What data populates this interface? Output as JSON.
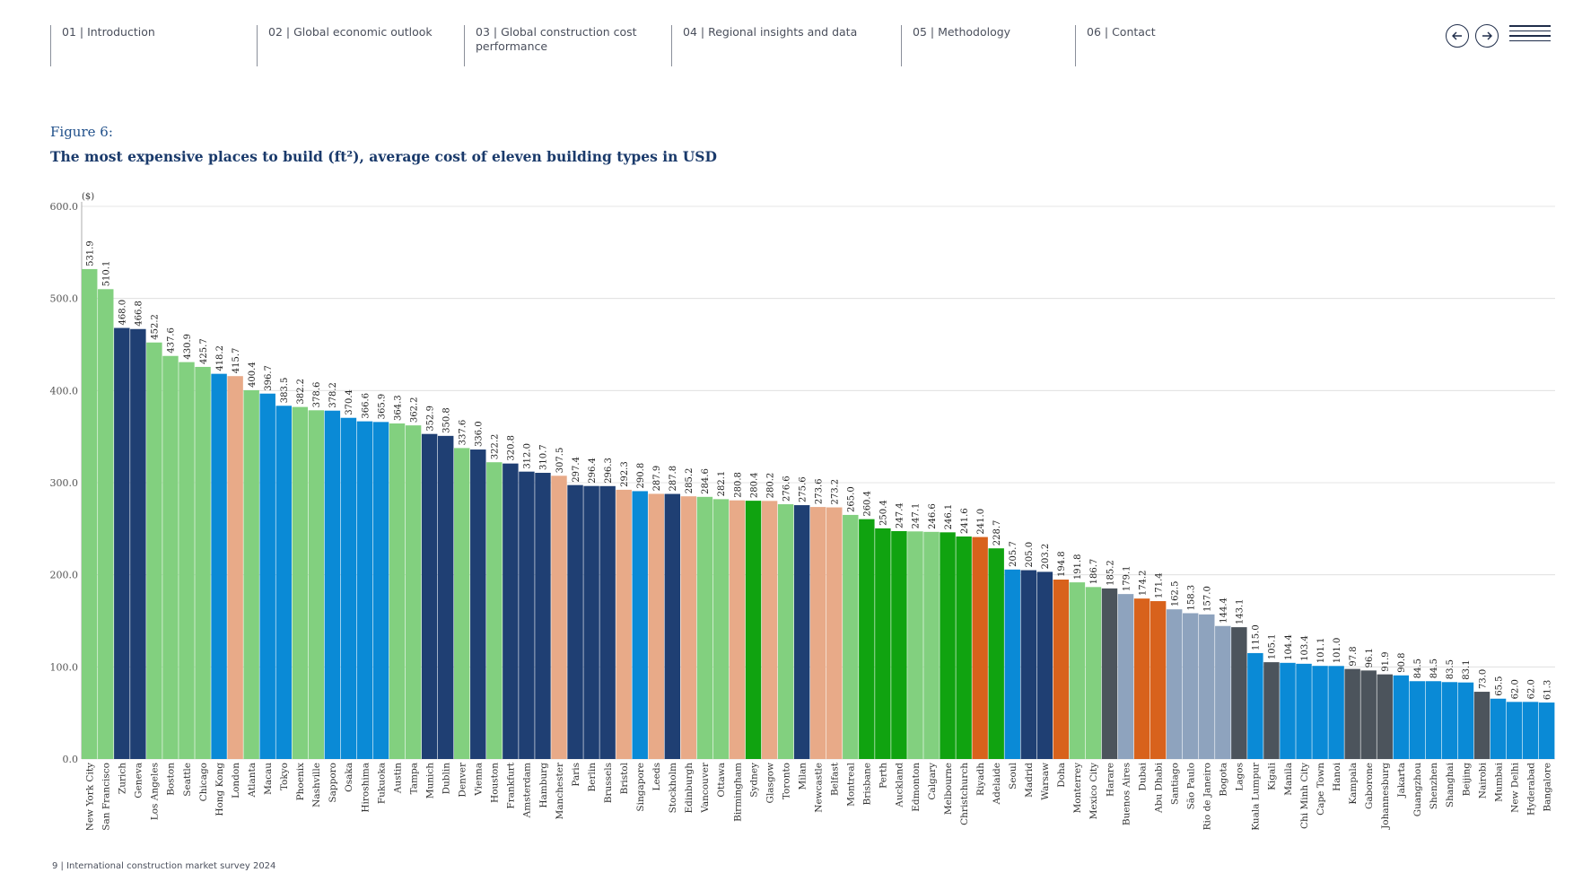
{
  "nav": {
    "items": [
      {
        "label": "01 | Introduction"
      },
      {
        "label": "02 | Global economic outlook"
      },
      {
        "label": "03 | Global construction cost\n      performance"
      },
      {
        "label": "04 | Regional insights and data"
      },
      {
        "label": "05 | Methodology"
      },
      {
        "label": "06 | Contact"
      }
    ],
    "prev_icon": "arrow-left-icon",
    "next_icon": "arrow-right-icon",
    "menu_icon": "hamburger-menu-icon"
  },
  "figure": {
    "label": "Figure 6:",
    "title": "The most expensive places to build (ft²), average cost of eleven building types in USD"
  },
  "footer": {
    "text": "9  |  International construction market survey 2024"
  },
  "colors": {
    "light_green": "#82d07f",
    "dark_navy": "#1f3f73",
    "blue": "#0a8ad6",
    "peach": "#e8aa88",
    "green": "#10a310",
    "orange": "#d8621c",
    "gray_blue": "#8ea3be",
    "dark_gray": "#4c545c"
  },
  "chart_data": {
    "type": "bar",
    "title": "The most expensive places to build (ft²), average cost of eleven building types in USD",
    "ylabel": "($)",
    "xlabel": "",
    "ylim": [
      0,
      600
    ],
    "yticks": [
      "0.0",
      "100.0",
      "200.0",
      "300.0",
      "400.0",
      "500.0",
      "600.0"
    ],
    "grid": true,
    "categories": [
      "New York City",
      "San Francisco",
      "Zurich",
      "Geneva",
      "Los Angeles",
      "Boston",
      "Seattle",
      "Chicago",
      "Hong Kong",
      "London",
      "Atlanta",
      "Macau",
      "Tokyo",
      "Phoenix",
      "Nashville",
      "Sapporo",
      "Osaka",
      "Hiroshima",
      "Fukuoka",
      "Austin",
      "Tampa",
      "Munich",
      "Dublin",
      "Denver",
      "Vienna",
      "Houston",
      "Frankfurt",
      "Amsterdam",
      "Hamburg",
      "Manchester",
      "Paris",
      "Berlin",
      "Brussels",
      "Bristol",
      "Singapore",
      "Leeds",
      "Stockholm",
      "Edinburgh",
      "Vancouver",
      "Ottawa",
      "Birmingham",
      "Sydney",
      "Glasgow",
      "Toronto",
      "Milan",
      "Newcastle",
      "Belfast",
      "Montreal",
      "Brisbane",
      "Perth",
      "Auckland",
      "Edmonton",
      "Calgary",
      "Melbourne",
      "Christchurch",
      "Riyadh",
      "Adelaide",
      "Seoul",
      "Madrid",
      "Warsaw",
      "Doha",
      "Monterrey",
      "Mexico City",
      "Harare",
      "Buenos Aires",
      "Dubai",
      "Abu Dhabi",
      "Santiago",
      "São Paulo",
      "Rio de Janeiro",
      "Bogota",
      "Lagos",
      "Kuala Lumpur",
      "Kigali",
      "Manila",
      "Ho Chi Minh City",
      "Cape Town",
      "Hanoi",
      "Kampala",
      "Gaborone",
      "Johannesburg",
      "Jakarta",
      "Guangzhou",
      "Shenzhen",
      "Shanghai",
      "Beijing",
      "Nairobi",
      "Mumbai",
      "New Delhi",
      "Hyderabad",
      "Bangalore"
    ],
    "values": [
      531.9,
      510.1,
      468.0,
      466.8,
      452.2,
      437.6,
      430.9,
      425.7,
      418.2,
      415.7,
      400.4,
      396.7,
      383.5,
      382.2,
      378.6,
      378.2,
      370.4,
      366.6,
      365.9,
      364.3,
      362.2,
      352.9,
      350.8,
      337.6,
      336.0,
      322.2,
      320.8,
      312.0,
      310.7,
      307.5,
      297.4,
      296.4,
      296.3,
      292.3,
      290.8,
      287.9,
      287.8,
      285.2,
      284.6,
      282.1,
      280.8,
      280.4,
      280.2,
      276.6,
      275.6,
      273.6,
      273.2,
      265.0,
      260.4,
      250.4,
      247.4,
      247.1,
      246.6,
      246.1,
      241.6,
      241.0,
      228.7,
      205.7,
      205.0,
      203.2,
      194.8,
      191.8,
      186.7,
      185.2,
      179.1,
      174.2,
      171.4,
      162.5,
      158.3,
      157.0,
      144.4,
      143.1,
      115.0,
      105.1,
      104.4,
      103.4,
      101.1,
      101.0,
      97.8,
      96.1,
      91.9,
      90.8,
      84.5,
      84.5,
      83.5,
      83.1,
      73.0,
      65.5,
      62.0,
      62.0,
      61.3
    ],
    "value_labels": [
      "531.9",
      "510.1",
      "468.0",
      "466.8",
      "452.2",
      "437.6",
      "430.9",
      "425.7",
      "418.2",
      "415.7",
      "400.4",
      "396.7",
      "383.5",
      "382.2",
      "378.6",
      "378.2",
      "370.4",
      "366.6",
      "365.9",
      "364.3",
      "362.2",
      "352.9",
      "350.8",
      "337.6",
      "336.0",
      "322.2",
      "320.8",
      "312.0",
      "310.7",
      "307.5",
      "297.4",
      "296.4",
      "296.3",
      "292.3",
      "290.8",
      "287.9",
      "287.8",
      "285.2",
      "284.6",
      "282.1",
      "280.8",
      "280.4",
      "280.2",
      "276.6",
      "275.6",
      "273.6",
      "273.2",
      "265.0",
      "260.4",
      "250.4",
      "247.4",
      "247.1",
      "246.6",
      "246.1",
      "241.6",
      "241.0",
      "228.7",
      "205.7",
      "205.0",
      "203.2",
      "194.8",
      "191.8",
      "186.7",
      "185.2",
      "179.1",
      "174.2",
      "171.4",
      "162.5",
      "158.3",
      "157.0",
      "144.4",
      "143.1",
      "115.0",
      "105.1",
      "104.4",
      "103.4",
      "101.1",
      "101.0",
      "97.8",
      "96.1",
      "91.9",
      "90.8",
      "84.5",
      "84.5",
      "83.5",
      "83.1",
      "73.0",
      "65.5",
      "62.0",
      "62.0",
      "61.3"
    ],
    "bar_colors": [
      "#82d07f",
      "#82d07f",
      "#1f3f73",
      "#1f3f73",
      "#82d07f",
      "#82d07f",
      "#82d07f",
      "#82d07f",
      "#0a8ad6",
      "#e8aa88",
      "#82d07f",
      "#0a8ad6",
      "#0a8ad6",
      "#82d07f",
      "#82d07f",
      "#0a8ad6",
      "#0a8ad6",
      "#0a8ad6",
      "#0a8ad6",
      "#82d07f",
      "#82d07f",
      "#1f3f73",
      "#1f3f73",
      "#82d07f",
      "#1f3f73",
      "#82d07f",
      "#1f3f73",
      "#1f3f73",
      "#1f3f73",
      "#e8aa88",
      "#1f3f73",
      "#1f3f73",
      "#1f3f73",
      "#e8aa88",
      "#0a8ad6",
      "#e8aa88",
      "#1f3f73",
      "#e8aa88",
      "#82d07f",
      "#82d07f",
      "#e8aa88",
      "#10a310",
      "#e8aa88",
      "#82d07f",
      "#1f3f73",
      "#e8aa88",
      "#e8aa88",
      "#82d07f",
      "#10a310",
      "#10a310",
      "#10a310",
      "#82d07f",
      "#82d07f",
      "#10a310",
      "#10a310",
      "#d8621c",
      "#10a310",
      "#0a8ad6",
      "#1f3f73",
      "#1f3f73",
      "#d8621c",
      "#82d07f",
      "#82d07f",
      "#4c545c",
      "#8ea3be",
      "#d8621c",
      "#d8621c",
      "#8ea3be",
      "#8ea3be",
      "#8ea3be",
      "#8ea3be",
      "#4c545c",
      "#0a8ad6",
      "#4c545c",
      "#0a8ad6",
      "#0a8ad6",
      "#0a8ad6",
      "#0a8ad6",
      "#4c545c",
      "#4c545c",
      "#4c545c",
      "#0a8ad6",
      "#0a8ad6",
      "#0a8ad6",
      "#0a8ad6",
      "#0a8ad6",
      "#4c545c",
      "#0a8ad6",
      "#0a8ad6",
      "#0a8ad6",
      "#0a8ad6"
    ]
  }
}
